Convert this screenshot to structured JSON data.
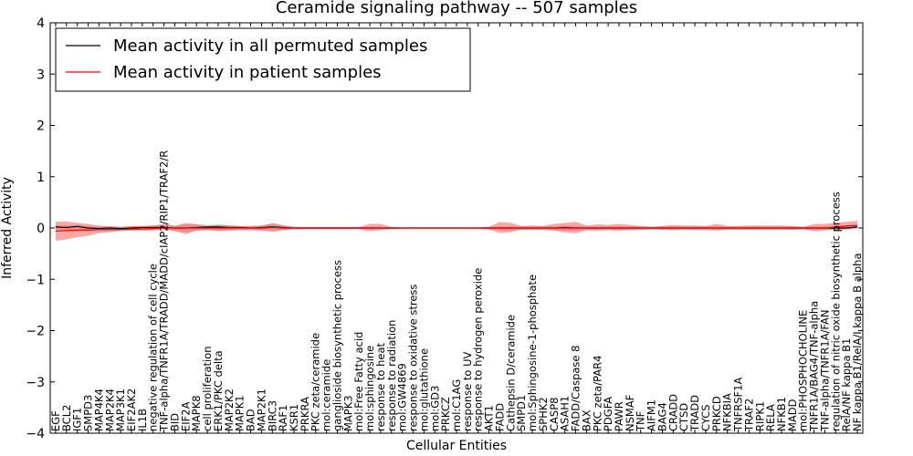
{
  "chart_data": {
    "type": "line",
    "title": "Ceramide signaling pathway -- 507 samples",
    "xlabel": "Cellular Entities",
    "ylabel": "Inferred Activity",
    "ylim": [
      -4,
      4
    ],
    "yticks": [
      "−4",
      "−3",
      "−2",
      "−1",
      "0",
      "1",
      "2",
      "3",
      "4"
    ],
    "grid": false,
    "legend_position": "top-left",
    "categories": [
      "EGF",
      "BCL2",
      "IGF1",
      "SMPD3",
      "MAP4K4",
      "MAP2K4",
      "MAP3K1",
      "EIF2AK2",
      "IL1B",
      "negative regulation of cell cycle",
      "TNF-alpha/TNFR1A/TRADD/MADD/cIAP2/RIP1/TRAF2/R",
      "BID",
      "EIF2A",
      "MAPK8",
      "cell proliferation",
      "ERK1/PKC delta",
      "MAP2K2",
      "MAPK1",
      "BAD",
      "MAP2K1",
      "BIRC3",
      "RAF1",
      "KSR1",
      "PRKRA",
      "PKC zeta/ceramide",
      "mol:ceramide",
      "ganglioside biosynthetic process",
      "MAPK3",
      "mol:Free Fatty acid",
      "mol:sphingosine",
      "response to heat",
      "response to radiation",
      "mol:GW4869",
      "response to oxidative stress",
      "mol:glutathione",
      "mol:GD3",
      "PRKCZ",
      "mol:C1AG",
      "response to UV",
      "response to hydrogen peroxide",
      "AKT1",
      "FADD",
      "Cathepsin D/ceramide",
      "SMPD1",
      "mol:Sphingosine-1-phosphate",
      "SPHK2",
      "CASP8",
      "ASAH1",
      "FADD/Caspase 8",
      "BAX",
      "PKC zeta/PAR4",
      "PDGFA",
      "PAWR",
      "NSMAF",
      "TNF",
      "AIFM1",
      "BAG4",
      "CRADD",
      "CTSD",
      "TRADD",
      "CYCS",
      "PRKCD",
      "NFKBIA",
      "TNFRSF1A",
      "TRAF2",
      "RIPK1",
      "RELA",
      "NFKB1",
      "MADD",
      "mol:PHOSPHOCHOLINE",
      "TNFR1A/BAG4/TNF-alpha",
      "TNF-alpha/TNFR1A/FAN",
      "regulation of nitric oxide biosynthetic process",
      "RelA/NF kappa B1",
      "NF kappa B1/RelA/I kappa B alpha"
    ],
    "series": [
      {
        "name": "Mean activity in all permuted samples",
        "color": "#000000",
        "values": [
          0.02,
          0.01,
          0.03,
          0.0,
          -0.01,
          0.0,
          -0.01,
          0.0,
          0.01,
          0.01,
          0.01,
          0.0,
          0.0,
          0.01,
          0.02,
          0.02,
          0.01,
          0.01,
          0.0,
          0.01,
          0.02,
          0.01,
          0.0,
          0.0,
          0.0,
          0.0,
          0.0,
          0.0,
          0.0,
          0.0,
          0.0,
          0.0,
          0.0,
          0.0,
          0.0,
          0.0,
          0.0,
          0.0,
          0.0,
          0.0,
          0.0,
          0.0,
          0.0,
          0.0,
          0.0,
          0.0,
          0.0,
          0.01,
          0.0,
          0.0,
          0.0,
          0.0,
          0.0,
          0.0,
          0.0,
          0.0,
          0.0,
          0.0,
          0.0,
          0.0,
          0.0,
          0.0,
          0.0,
          0.0,
          0.0,
          0.0,
          0.0,
          0.0,
          0.0,
          0.0,
          0.0,
          0.0,
          0.0,
          0.0,
          0.02
        ]
      },
      {
        "name": "Mean activity in patient samples",
        "color": "#ff0000",
        "values": [
          -0.06,
          -0.05,
          -0.04,
          -0.04,
          -0.03,
          -0.03,
          -0.03,
          -0.02,
          -0.02,
          -0.01,
          0.0,
          0.0,
          0.0,
          0.0,
          0.0,
          0.0,
          0.0,
          0.0,
          0.0,
          0.0,
          0.01,
          0.0,
          0.0,
          0.0,
          0.0,
          0.0,
          0.0,
          0.0,
          0.0,
          0.0,
          0.0,
          0.0,
          0.0,
          0.0,
          0.0,
          0.0,
          0.0,
          0.0,
          0.0,
          0.0,
          0.0,
          0.0,
          0.0,
          0.0,
          0.0,
          0.0,
          0.0,
          0.0,
          0.0,
          0.0,
          0.0,
          0.0,
          0.0,
          0.0,
          0.0,
          0.0,
          0.0,
          0.0,
          0.0,
          0.0,
          0.0,
          0.0,
          0.0,
          0.0,
          0.0,
          0.0,
          0.0,
          0.0,
          0.0,
          0.0,
          0.0,
          0.0,
          0.02,
          0.04,
          0.05
        ]
      }
    ],
    "bands": [
      {
        "series": "Mean activity in all permuted samples",
        "color": "#bbbbbb",
        "upper": [
          0.06,
          0.05,
          0.06,
          0.04,
          0.03,
          0.03,
          0.03,
          0.03,
          0.04,
          0.05,
          0.06,
          0.05,
          0.07,
          0.08,
          0.06,
          0.07,
          0.06,
          0.04,
          0.05,
          0.06,
          0.07,
          0.06,
          0.03,
          0.02,
          0.02,
          0.02,
          0.02,
          0.02,
          0.02,
          0.02,
          0.02,
          0.02,
          0.02,
          0.02,
          0.02,
          0.02,
          0.02,
          0.02,
          0.02,
          0.02,
          0.03,
          0.03,
          0.03,
          0.03,
          0.03,
          0.03,
          0.03,
          0.05,
          0.04,
          0.03,
          0.03,
          0.03,
          0.03,
          0.03,
          0.03,
          0.03,
          0.03,
          0.03,
          0.03,
          0.03,
          0.03,
          0.03,
          0.03,
          0.03,
          0.03,
          0.03,
          0.03,
          0.03,
          0.03,
          0.03,
          0.03,
          0.03,
          0.03,
          0.03,
          0.06
        ],
        "lower": [
          -0.03,
          -0.04,
          -0.02,
          -0.05,
          -0.06,
          -0.06,
          -0.06,
          -0.05,
          -0.05,
          -0.04,
          -0.05,
          -0.06,
          -0.08,
          -0.06,
          -0.04,
          -0.05,
          -0.05,
          -0.05,
          -0.06,
          -0.04,
          -0.05,
          -0.05,
          -0.03,
          -0.02,
          -0.02,
          -0.02,
          -0.02,
          -0.02,
          -0.02,
          -0.02,
          -0.02,
          -0.02,
          -0.02,
          -0.02,
          -0.02,
          -0.02,
          -0.02,
          -0.02,
          -0.02,
          -0.02,
          -0.04,
          -0.05,
          -0.05,
          -0.04,
          -0.04,
          -0.04,
          -0.05,
          -0.06,
          -0.05,
          -0.05,
          -0.04,
          -0.04,
          -0.04,
          -0.04,
          -0.04,
          -0.04,
          -0.04,
          -0.04,
          -0.04,
          -0.04,
          -0.05,
          -0.04,
          -0.04,
          -0.04,
          -0.04,
          -0.04,
          -0.04,
          -0.04,
          -0.04,
          -0.04,
          -0.04,
          -0.04,
          -0.04,
          -0.04,
          -0.02
        ]
      },
      {
        "series": "Mean activity in patient samples",
        "color": "#ff0000",
        "upper": [
          0.12,
          0.13,
          0.1,
          0.08,
          0.05,
          0.03,
          0.02,
          0.04,
          0.04,
          0.05,
          0.08,
          0.04,
          0.1,
          0.07,
          0.04,
          0.06,
          0.05,
          0.04,
          0.03,
          0.04,
          0.1,
          0.05,
          0.02,
          0.02,
          0.02,
          0.02,
          0.02,
          0.02,
          0.02,
          0.08,
          0.08,
          0.02,
          0.01,
          0.01,
          0.01,
          0.01,
          0.01,
          0.01,
          0.01,
          0.01,
          0.02,
          0.12,
          0.1,
          0.04,
          0.05,
          0.04,
          0.08,
          0.1,
          0.12,
          0.05,
          0.07,
          0.06,
          0.08,
          0.06,
          0.04,
          0.02,
          0.04,
          0.06,
          0.05,
          0.05,
          0.04,
          0.08,
          0.04,
          0.04,
          0.05,
          0.05,
          0.05,
          0.05,
          0.04,
          0.02,
          0.08,
          0.08,
          0.1,
          0.12,
          0.14
        ],
        "lower": [
          -0.25,
          -0.22,
          -0.18,
          -0.15,
          -0.1,
          -0.08,
          -0.05,
          -0.05,
          -0.05,
          -0.05,
          -0.02,
          -0.06,
          -0.12,
          -0.05,
          -0.04,
          -0.06,
          -0.05,
          -0.04,
          -0.03,
          -0.05,
          -0.08,
          -0.04,
          -0.02,
          -0.02,
          -0.02,
          -0.02,
          -0.02,
          -0.02,
          -0.02,
          -0.06,
          -0.04,
          -0.02,
          -0.01,
          -0.01,
          -0.01,
          -0.01,
          -0.01,
          -0.01,
          -0.01,
          -0.01,
          -0.02,
          -0.1,
          -0.08,
          -0.03,
          -0.04,
          -0.03,
          -0.05,
          -0.08,
          -0.1,
          -0.04,
          -0.05,
          -0.04,
          -0.05,
          -0.04,
          -0.03,
          -0.02,
          -0.03,
          -0.04,
          -0.03,
          -0.04,
          -0.03,
          -0.05,
          -0.03,
          -0.03,
          -0.03,
          -0.03,
          -0.03,
          -0.03,
          -0.03,
          -0.02,
          -0.06,
          -0.04,
          -0.04,
          -0.02,
          0.0
        ]
      }
    ]
  }
}
